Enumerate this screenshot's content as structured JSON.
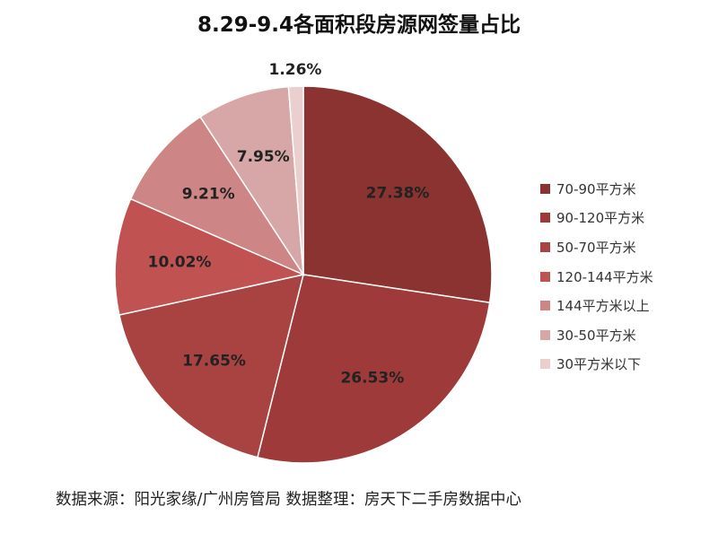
{
  "chart_data": {
    "type": "pie",
    "title": "8.29-9.4各面积段房源网签量占比",
    "categories": [
      "70-90平方米",
      "90-120平方米",
      "50-70平方米",
      "120-144平方米",
      "144平方米以上",
      "30-50平方米",
      "30平方米以下"
    ],
    "values": [
      27.38,
      26.53,
      17.65,
      10.02,
      9.21,
      7.95,
      1.26
    ],
    "data_labels": [
      "27.38%",
      "26.53%",
      "17.65%",
      "10.02%",
      "9.21%",
      "7.95%",
      "1.26%"
    ],
    "colors": [
      "#8b3331",
      "#9e3a39",
      "#a84342",
      "#c05252",
      "#cd8685",
      "#d6a7a6",
      "#ebcfcf"
    ],
    "legend_position": "right",
    "start": "top",
    "direction": "clockwise"
  },
  "footer": {
    "source": "数据来源：阳光家缘/广州房管局 数据整理：房天下二手房数据中心"
  }
}
